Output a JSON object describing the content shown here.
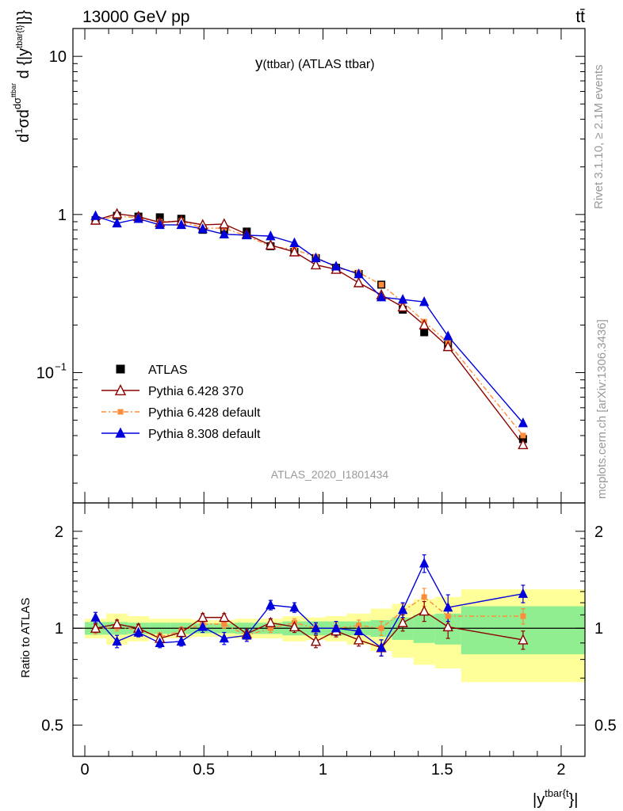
{
  "header": {
    "process": "13000 GeV pp",
    "particle": "tt̄",
    "plot_title": "y(ttbar) (ATLAS ttbar)",
    "analysis_id": "ATLAS_2020_I1801434",
    "side_label_top": "Rivet 3.1.10, ≥ 2.1M events",
    "side_label_bottom": "mcplots.cern.ch [arXiv:1306.3436]"
  },
  "colors": {
    "data": "#000000",
    "py6_370": "#8b0000",
    "py6_default": "#ff8c3a",
    "py8_default": "#0000dd",
    "band_inner": "#90ee90",
    "band_outer": "#ffff99"
  },
  "chart_data": [
    {
      "type": "scatter",
      "title": "y(ttbar) (ATLAS ttbar)",
      "ylabel": "d1/σ dσttbar / d{|ytbar{t}|}",
      "xlabel": "|ytbar{t}|",
      "xlim": [
        -0.05,
        2.1
      ],
      "ylim": [
        0.015,
        15
      ],
      "log_y": true,
      "y_ticks": [
        "10^-1",
        "1",
        "10"
      ],
      "legend_position": "lower-left",
      "bins": [
        [
          0.0,
          0.09
        ],
        [
          0.09,
          0.18
        ],
        [
          0.18,
          0.27
        ],
        [
          0.27,
          0.36
        ],
        [
          0.36,
          0.45
        ],
        [
          0.45,
          0.54
        ],
        [
          0.54,
          0.63
        ],
        [
          0.63,
          0.73
        ],
        [
          0.73,
          0.83
        ],
        [
          0.83,
          0.93
        ],
        [
          0.93,
          1.01
        ],
        [
          1.01,
          1.1
        ],
        [
          1.1,
          1.2
        ],
        [
          1.2,
          1.29
        ],
        [
          1.29,
          1.38
        ],
        [
          1.38,
          1.47
        ],
        [
          1.47,
          1.58
        ],
        [
          1.58,
          2.1
        ]
      ],
      "x": [
        0.045,
        0.135,
        0.225,
        0.315,
        0.405,
        0.495,
        0.585,
        0.68,
        0.78,
        0.88,
        0.97,
        1.055,
        1.15,
        1.245,
        1.335,
        1.425,
        1.525,
        1.84
      ],
      "series": [
        {
          "name": "ATLAS",
          "marker": "square",
          "values": [
            0.92,
            0.98,
            0.97,
            0.96,
            0.94,
            0.8,
            0.8,
            0.78,
            0.63,
            0.58,
            0.53,
            0.46,
            0.42,
            0.36,
            0.25,
            0.18,
            0.15,
            0.038
          ]
        },
        {
          "name": "Pythia 6.428 370",
          "marker": "open-triangle",
          "values": [
            0.92,
            1.01,
            0.97,
            0.89,
            0.91,
            0.86,
            0.87,
            0.75,
            0.64,
            0.58,
            0.48,
            0.45,
            0.37,
            0.31,
            0.26,
            0.2,
            0.146,
            0.035
          ]
        },
        {
          "name": "Pythia 6.428 default",
          "marker": "small-square",
          "values": [
            0.91,
            0.98,
            0.95,
            0.9,
            0.91,
            0.82,
            0.82,
            0.73,
            0.63,
            0.6,
            0.54,
            0.46,
            0.43,
            0.36,
            0.28,
            0.21,
            0.155,
            0.04
          ]
        },
        {
          "name": "Pythia 8.308 default",
          "marker": "triangle",
          "values": [
            0.98,
            0.88,
            0.94,
            0.86,
            0.86,
            0.81,
            0.75,
            0.74,
            0.73,
            0.66,
            0.53,
            0.47,
            0.42,
            0.3,
            0.29,
            0.28,
            0.17,
            0.048
          ]
        }
      ]
    },
    {
      "type": "scatter",
      "ylabel": "Ratio to ATLAS",
      "xlabel": "|ytbar{t}|",
      "xlim": [
        -0.05,
        2.1
      ],
      "ylim": [
        0.4,
        2.45
      ],
      "log_y": true,
      "y_ticks": [
        0.5,
        1,
        2
      ],
      "x_ticks": [
        0,
        0.5,
        1,
        1.5,
        2
      ],
      "reference_line": 1.0,
      "band_inner_half": [
        0.045,
        0.045,
        0.04,
        0.04,
        0.04,
        0.035,
        0.035,
        0.04,
        0.04,
        0.05,
        0.05,
        0.05,
        0.05,
        0.06,
        0.08,
        0.1,
        0.11,
        0.17
      ],
      "band_outer_half": [
        0.07,
        0.11,
        0.09,
        0.07,
        0.07,
        0.06,
        0.06,
        0.07,
        0.07,
        0.09,
        0.08,
        0.09,
        0.11,
        0.15,
        0.19,
        0.23,
        0.25,
        0.32
      ],
      "series": [
        {
          "name": "Pythia 6.428 370",
          "values": [
            1.0,
            1.03,
            1.0,
            0.93,
            0.97,
            1.08,
            1.08,
            0.96,
            1.04,
            1.01,
            0.91,
            0.98,
            0.92,
            0.87,
            1.04,
            1.13,
            1.01,
            0.92
          ],
          "errors": [
            0.03,
            0.03,
            0.03,
            0.03,
            0.03,
            0.03,
            0.03,
            0.03,
            0.03,
            0.04,
            0.04,
            0.04,
            0.04,
            0.05,
            0.06,
            0.08,
            0.08,
            0.06
          ]
        },
        {
          "name": "Pythia 6.428 default",
          "values": [
            0.99,
            1.01,
            0.99,
            0.94,
            0.98,
            1.03,
            1.03,
            0.95,
            1.0,
            1.04,
            1.0,
            1.0,
            1.02,
            1.0,
            1.13,
            1.25,
            1.09,
            1.09
          ],
          "errors": [
            0.03,
            0.03,
            0.03,
            0.03,
            0.03,
            0.03,
            0.03,
            0.03,
            0.03,
            0.03,
            0.03,
            0.04,
            0.04,
            0.05,
            0.06,
            0.08,
            0.07,
            0.06
          ]
        },
        {
          "name": "Pythia 8.308 default",
          "values": [
            1.08,
            0.91,
            0.97,
            0.9,
            0.91,
            1.01,
            0.93,
            0.95,
            1.18,
            1.16,
            1.0,
            1.0,
            0.98,
            0.87,
            1.14,
            1.59,
            1.16,
            1.28
          ],
          "errors": [
            0.04,
            0.04,
            0.03,
            0.03,
            0.03,
            0.04,
            0.04,
            0.04,
            0.04,
            0.04,
            0.04,
            0.05,
            0.05,
            0.05,
            0.06,
            0.1,
            0.11,
            0.08
          ]
        }
      ]
    }
  ]
}
